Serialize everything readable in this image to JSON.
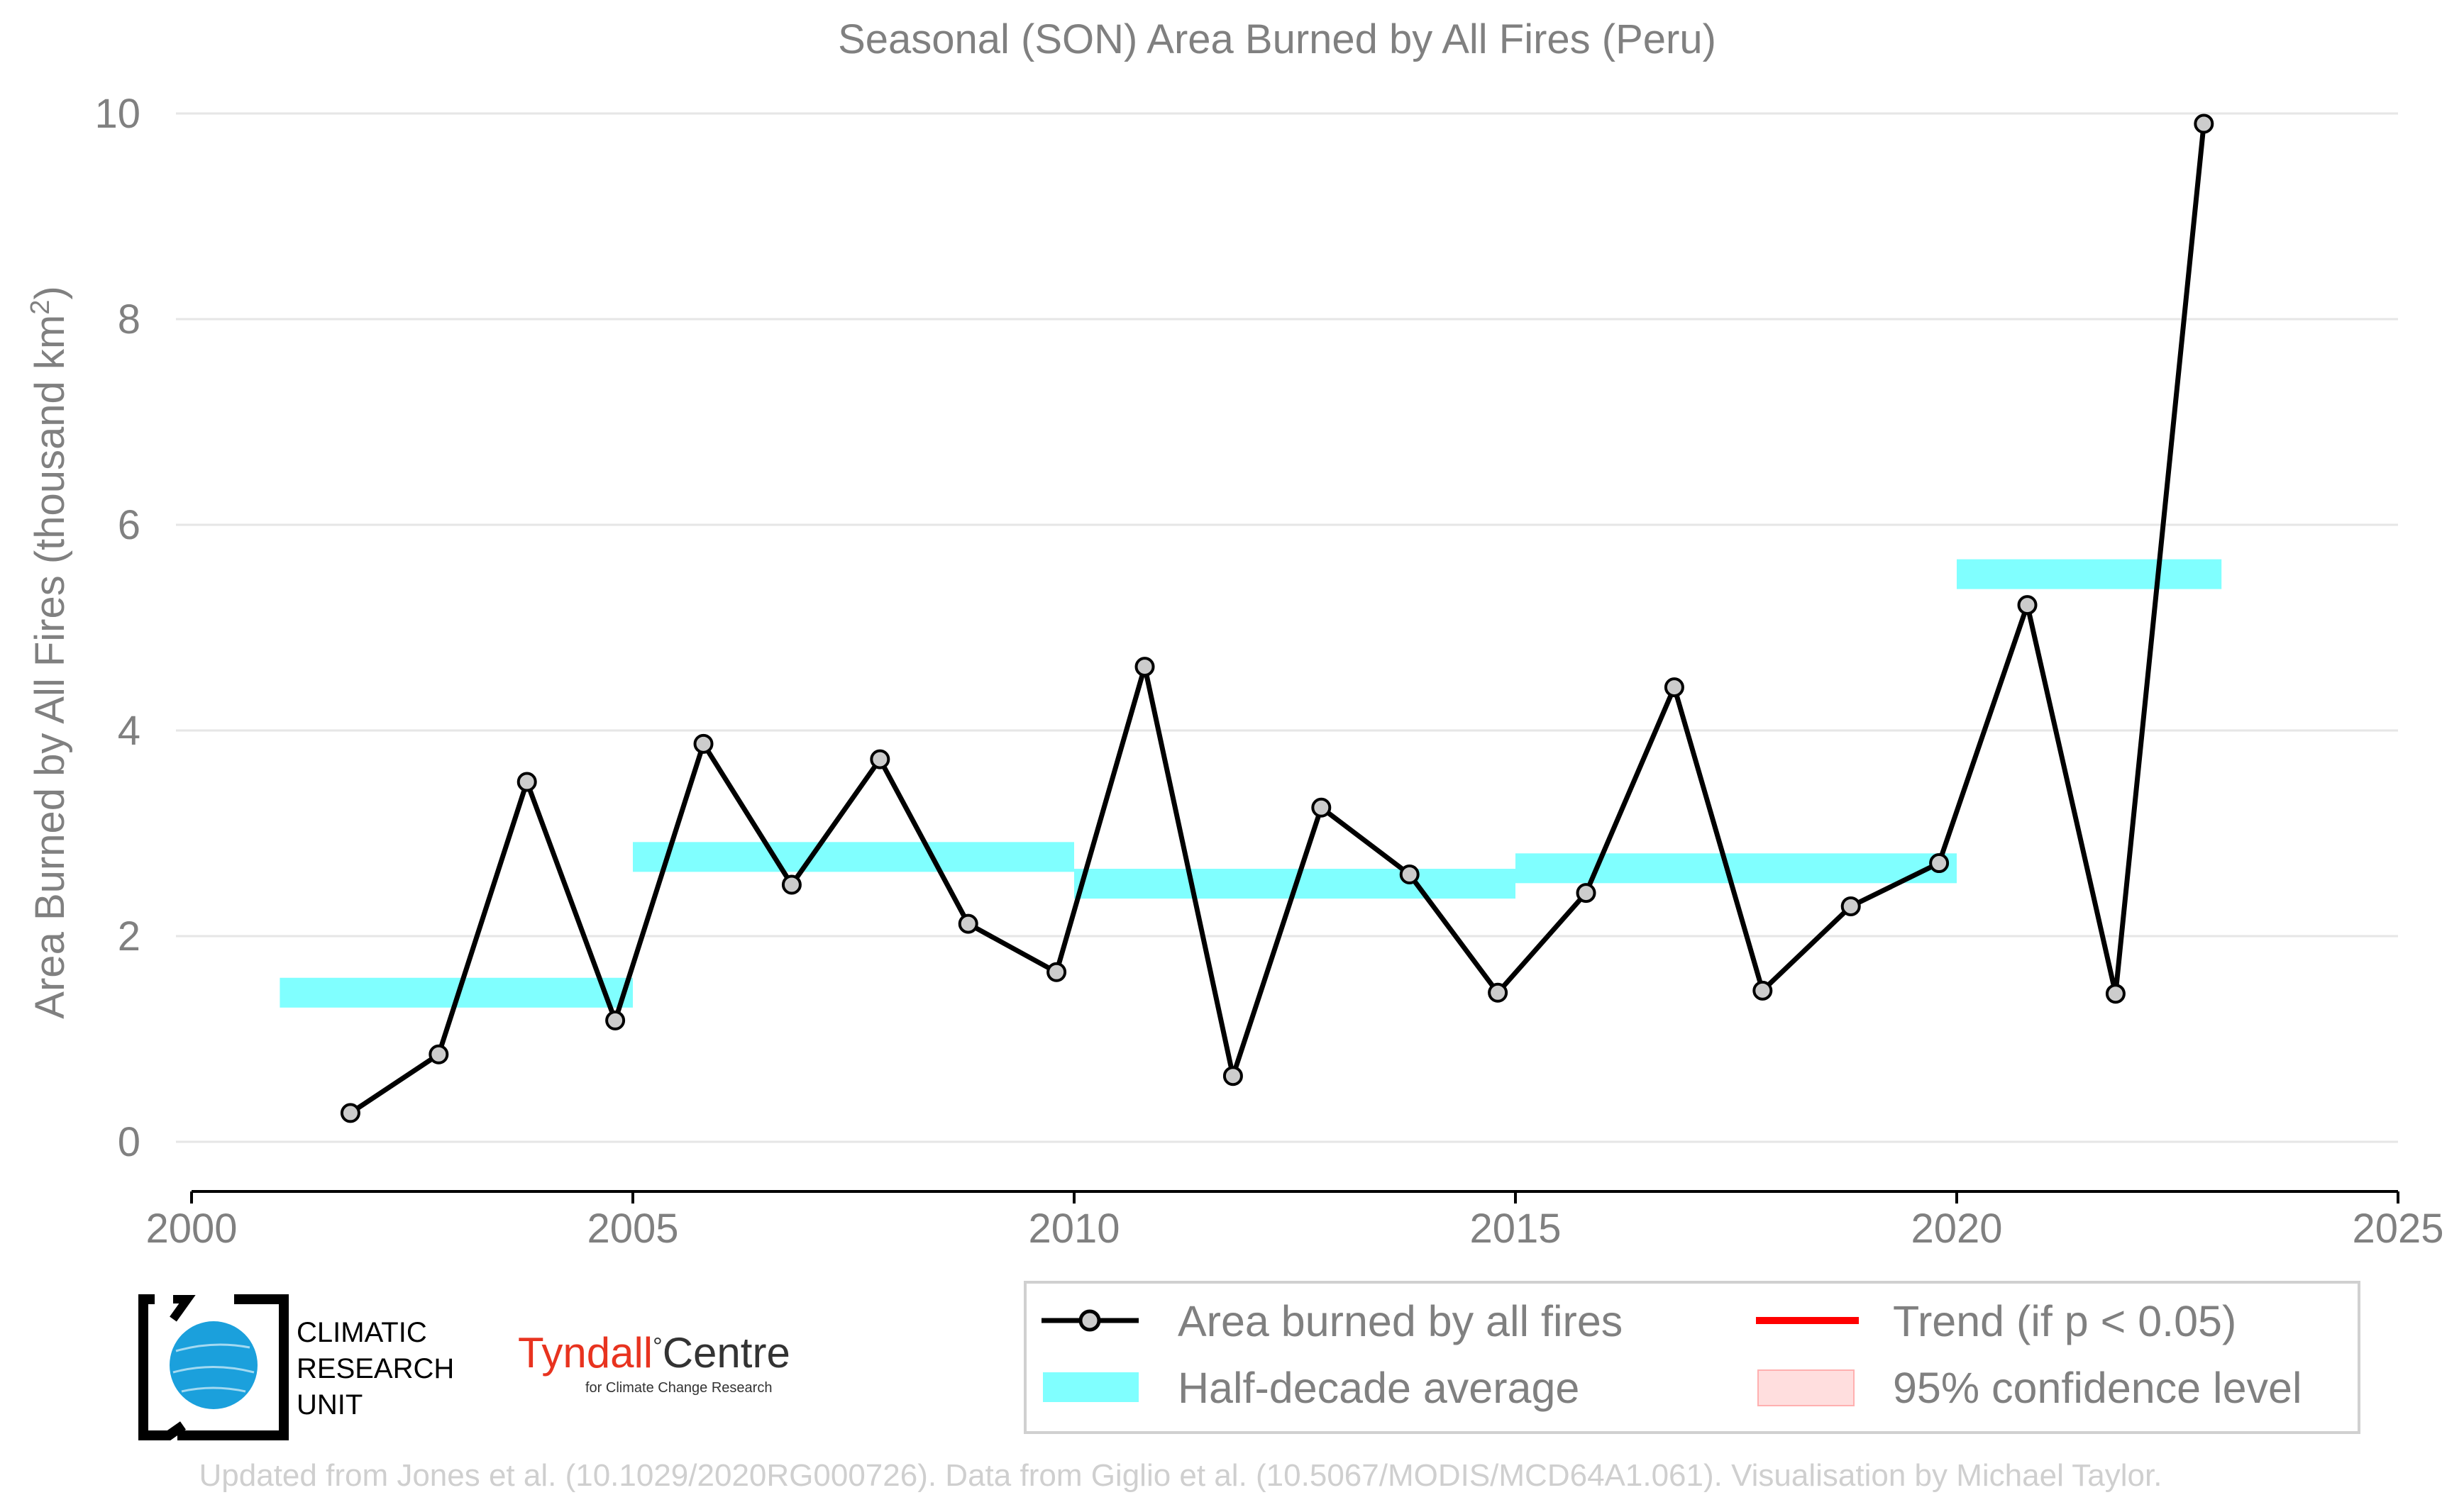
{
  "chart_data": {
    "type": "line",
    "title": "Seasonal (SON) Area Burned by All Fires (Peru)",
    "ylabel_prefix": "Area Burned by All Fires (thousand km",
    "ylabel_sup": "2",
    "ylabel_suffix": ")",
    "xlim": [
      2000,
      2025
    ],
    "ylim": [
      0,
      10
    ],
    "x_ticks": [
      2000,
      2005,
      2010,
      2015,
      2020,
      2025
    ],
    "x_tick_labels": [
      "2000",
      "2005",
      "2010",
      "2015",
      "2020",
      "2025"
    ],
    "y_ticks": [
      0,
      2,
      4,
      6,
      8,
      10
    ],
    "y_tick_labels": [
      "0",
      "2",
      "4",
      "6",
      "8",
      "10"
    ],
    "grid": "horizontal",
    "series": [
      {
        "name": "Area burned by all fires",
        "color": "#000000",
        "marker_fill": "#cccccc",
        "x": [
          2001.8,
          2002.8,
          2003.8,
          2004.8,
          2005.8,
          2006.8,
          2007.8,
          2008.8,
          2009.8,
          2010.8,
          2011.8,
          2012.8,
          2013.8,
          2014.8,
          2015.8,
          2016.8,
          2017.8,
          2018.8,
          2019.8,
          2020.8,
          2021.8,
          2022.8
        ],
        "values": [
          0.28,
          0.85,
          3.5,
          1.18,
          3.87,
          2.5,
          3.72,
          2.12,
          1.65,
          4.62,
          0.64,
          3.25,
          2.6,
          1.45,
          2.42,
          4.42,
          1.47,
          2.29,
          2.71,
          5.22,
          1.44,
          9.9
        ]
      }
    ],
    "half_decade_average": {
      "name": "Half-decade average",
      "color": "#80ffff",
      "segments": [
        {
          "x_start": 2001,
          "x_end": 2005,
          "value": 1.45
        },
        {
          "x_start": 2005,
          "x_end": 2010,
          "value": 2.77
        },
        {
          "x_start": 2010,
          "x_end": 2015,
          "value": 2.51
        },
        {
          "x_start": 2015,
          "x_end": 2020,
          "value": 2.66
        },
        {
          "x_start": 2020,
          "x_end": 2023,
          "value": 5.52
        }
      ]
    },
    "legend": {
      "placement": "bottom-right",
      "items": [
        {
          "label": "Area burned by all fires",
          "kind": "line-marker",
          "color": "#000000"
        },
        {
          "label": "Trend (if p < 0.05)",
          "kind": "line",
          "color": "#ff0000"
        },
        {
          "label": "Half-decade average",
          "kind": "band",
          "color": "#80ffff"
        },
        {
          "label": "95% confidence level",
          "kind": "band",
          "color": "#ffdede"
        }
      ]
    }
  },
  "logos": {
    "cru_lines": [
      "CLIMATIC",
      "RESEARCH",
      "UNIT"
    ],
    "tyndall_main": "Tyndall",
    "tyndall_degree": "°",
    "tyndall_centre": "Centre",
    "tyndall_sub": "for Climate Change Research"
  },
  "footer": "Updated from Jones et al. (10.1029/2020RG000726). Data from Giglio et al. (10.5067/MODIS/MCD64A1.061). Visualisation by Michael Taylor."
}
